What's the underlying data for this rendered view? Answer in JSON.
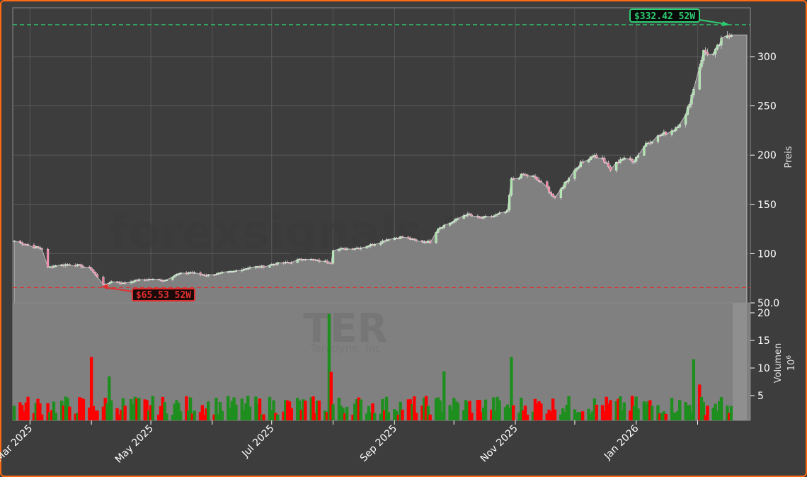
{
  "chart_data": [
    {
      "type": "candlestick",
      "panel": "price",
      "title": "",
      "ylabel": "Preis",
      "ylim": [
        50,
        340
      ],
      "yticks": [
        50.0,
        100,
        150,
        200,
        250,
        300
      ],
      "ytick_labels": [
        "50.0",
        "100",
        "150",
        "200",
        "250",
        "300"
      ],
      "grid": true,
      "x_tick_labels": [
        "Mar 2025",
        "May 2025",
        "Jul 2025",
        "Sep 2025",
        "Nov 2025",
        "Jan 2026"
      ],
      "annotations": [
        {
          "label": "$332.42 52W",
          "value": 332.42,
          "kind": "52-week high",
          "color": "#2ecc71"
        },
        {
          "label": "$65.53 52W",
          "value": 65.53,
          "kind": "52-week low",
          "color": "#e03030"
        }
      ],
      "close_path": [
        [
          "2025-02-21",
          113
        ],
        [
          "2025-02-26",
          110
        ],
        [
          "2025-03-03",
          107
        ],
        [
          "2025-03-07",
          105
        ],
        [
          "2025-03-10",
          86
        ],
        [
          "2025-03-14",
          88
        ],
        [
          "2025-03-20",
          89
        ],
        [
          "2025-03-26",
          88
        ],
        [
          "2025-04-01",
          84
        ],
        [
          "2025-04-04",
          76
        ],
        [
          "2025-04-08",
          67
        ],
        [
          "2025-04-11",
          72
        ],
        [
          "2025-04-17",
          70
        ],
        [
          "2025-04-24",
          73
        ],
        [
          "2025-05-01",
          74
        ],
        [
          "2025-05-08",
          73
        ],
        [
          "2025-05-14",
          79
        ],
        [
          "2025-05-21",
          81
        ],
        [
          "2025-05-29",
          78
        ],
        [
          "2025-06-05",
          80
        ],
        [
          "2025-06-12",
          82
        ],
        [
          "2025-06-20",
          86
        ],
        [
          "2025-06-27",
          87
        ],
        [
          "2025-07-03",
          90
        ],
        [
          "2025-07-10",
          91
        ],
        [
          "2025-07-17",
          95
        ],
        [
          "2025-07-24",
          93
        ],
        [
          "2025-07-31",
          91
        ],
        [
          "2025-08-01",
          104
        ],
        [
          "2025-08-08",
          105
        ],
        [
          "2025-08-15",
          106
        ],
        [
          "2025-08-22",
          110
        ],
        [
          "2025-08-29",
          115
        ],
        [
          "2025-09-05",
          117
        ],
        [
          "2025-09-12",
          113
        ],
        [
          "2025-09-19",
          112
        ],
        [
          "2025-09-23",
          126
        ],
        [
          "2025-09-30",
          132
        ],
        [
          "2025-10-07",
          140
        ],
        [
          "2025-10-14",
          136
        ],
        [
          "2025-10-21",
          138
        ],
        [
          "2025-10-28",
          143
        ],
        [
          "2025-10-30",
          175
        ],
        [
          "2025-11-05",
          180
        ],
        [
          "2025-11-10",
          178
        ],
        [
          "2025-11-17",
          167
        ],
        [
          "2025-11-21",
          155
        ],
        [
          "2025-11-26",
          172
        ],
        [
          "2025-12-03",
          190
        ],
        [
          "2025-12-10",
          200
        ],
        [
          "2025-12-15",
          196
        ],
        [
          "2025-12-19",
          185
        ],
        [
          "2025-12-24",
          196
        ],
        [
          "2025-12-31",
          195
        ],
        [
          "2026-01-06",
          212
        ],
        [
          "2026-01-13",
          220
        ],
        [
          "2026-01-20",
          226
        ],
        [
          "2026-01-26",
          240
        ],
        [
          "2026-01-30",
          268
        ],
        [
          "2026-02-04",
          305
        ],
        [
          "2026-02-09",
          302
        ],
        [
          "2026-02-13",
          316
        ],
        [
          "2026-02-18",
          322
        ]
      ],
      "high_52w": 332.42,
      "low_52w": 65.53,
      "watermark": "forexsignals.trade"
    },
    {
      "type": "bar",
      "panel": "volume",
      "ylabel": "Volumen",
      "yscale_label": "10^6",
      "yticks": [
        5,
        10,
        15,
        20
      ],
      "ytick_labels": [
        "5",
        "10",
        "15",
        "20"
      ],
      "ylim": [
        0,
        21
      ],
      "series_colors": {
        "up": "#1e8e1e",
        "down": "#ff0000"
      },
      "notable_spikes": [
        {
          "date": "2025-04-01",
          "value": 12.0,
          "direction": "down"
        },
        {
          "date": "2025-04-10",
          "value": 8.5,
          "direction": "up"
        },
        {
          "date": "2025-07-30",
          "value": 19.8,
          "direction": "up"
        },
        {
          "date": "2025-07-31",
          "value": 9.3,
          "direction": "down"
        },
        {
          "date": "2025-09-26",
          "value": 9.4,
          "direction": "up"
        },
        {
          "date": "2025-10-30",
          "value": 12.0,
          "direction": "up"
        },
        {
          "date": "2025-12-20",
          "value": 7.8,
          "direction": "up"
        },
        {
          "date": "2026-01-30",
          "value": 11.6,
          "direction": "up"
        },
        {
          "date": "2026-02-02",
          "value": 7.0,
          "direction": "down"
        }
      ],
      "typical_range": [
        1.5,
        5
      ],
      "watermark_ticker": "TER",
      "watermark_name": "Teradyne, Inc"
    }
  ],
  "labels": {
    "price_axis_title": "Preis",
    "volume_axis_title": "Volumen",
    "volume_scale": "10",
    "volume_scale_exp": "6",
    "high_label": "$332.42 52W",
    "low_label": "$65.53 52W",
    "watermark_site": "forexsignals.trade",
    "watermark_ticker": "TER",
    "watermark_company": "Teradyne, Inc"
  },
  "colors": {
    "frame_border": "#ff6a13",
    "background": "#3d3d3d",
    "area_fill": "#808080",
    "high_line": "#2ecc71",
    "low_line": "#e03030",
    "volume_up": "#1e8e1e",
    "volume_down": "#ff0000",
    "candle_up": "#a8e6a8",
    "candle_down": "#f07a9a"
  }
}
